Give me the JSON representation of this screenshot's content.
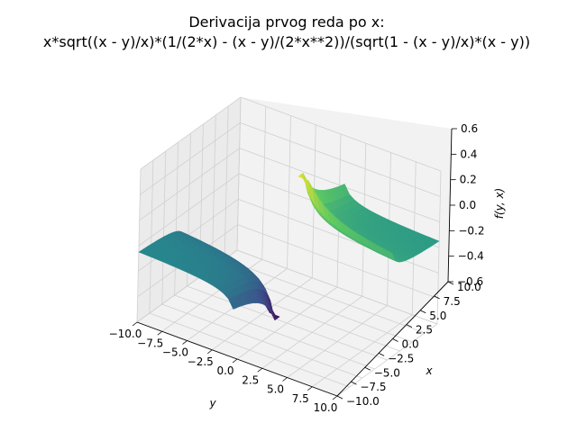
{
  "chart_data": {
    "type": "surface3d",
    "title_line1": "Derivacija prvog reda po x:",
    "title_line2": "x*sqrt((x - y)/x)*(1/(2*x) - (x - y)/(2*x**2))/(sqrt(1 - (x - y)/x)*(x - y))",
    "xlabel": "y",
    "ylabel": "x",
    "zlabel": "f(y, x)",
    "y_axis_ticks": [
      "−10.0",
      "−7.5",
      "−5.0",
      "−2.5",
      "0.0",
      "2.5",
      "5.0",
      "7.5",
      "10.0"
    ],
    "x_axis_ticks": [
      "−10.0",
      "−7.5",
      "−5.0",
      "−2.5",
      "0.0",
      "2.5",
      "5.0",
      "7.5",
      "10.0"
    ],
    "z_axis_ticks": [
      "−0.6",
      "−0.4",
      "−0.2",
      "0.0",
      "0.2",
      "0.4",
      "0.6"
    ],
    "y_range": [
      -10,
      10
    ],
    "x_range": [
      -10,
      10
    ],
    "z_range": [
      -0.6,
      0.6
    ],
    "colormap": "viridis",
    "grid": true,
    "colors": {
      "pane": "#f2f2f2",
      "pane_side": "#ebebeb",
      "grid": "#d0d0d0",
      "surface_mid": "#2a9e8c",
      "surface_high": "#fde725",
      "surface_low": "#440154"
    }
  }
}
